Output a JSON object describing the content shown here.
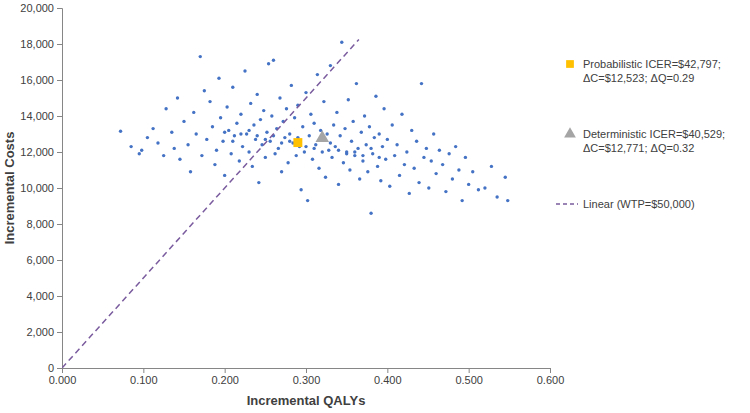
{
  "chart_data": {
    "type": "scatter",
    "x_label": "Incremental QALYs",
    "y_label": "Incremental Costs",
    "xlim": [
      0,
      0.6
    ],
    "ylim": [
      0,
      20000
    ],
    "xticks": [
      {
        "value": 0,
        "label": "0.000"
      },
      {
        "value": 0.1,
        "label": "0.100"
      },
      {
        "value": 0.2,
        "label": "0.200"
      },
      {
        "value": 0.3,
        "label": "0.300"
      },
      {
        "value": 0.4,
        "label": "0.400"
      },
      {
        "value": 0.5,
        "label": "0.500"
      },
      {
        "value": 0.6,
        "label": "0.600"
      }
    ],
    "yticks": [
      0,
      {
        "value": 2000,
        "label": "2,000"
      },
      {
        "value": 4000,
        "label": "4,000"
      },
      {
        "value": 6000,
        "label": "6,000"
      },
      {
        "value": 8000,
        "label": "8,000"
      },
      {
        "value": 10000,
        "label": "10,000"
      },
      {
        "value": 12000,
        "label": "12,000"
      },
      {
        "value": 14000,
        "label": "14,000"
      },
      {
        "value": 16000,
        "label": "16,000"
      },
      {
        "value": 18000,
        "label": "18,000"
      },
      {
        "value": 20000,
        "label": "20,000"
      }
    ],
    "grid": false,
    "legend": "right",
    "series": [
      {
        "color": "#4472c4",
        "marker": "circle",
        "x": [
          0.072,
          0.085,
          0.095,
          0.098,
          0.105,
          0.112,
          0.118,
          0.125,
          0.128,
          0.135,
          0.138,
          0.142,
          0.145,
          0.15,
          0.155,
          0.158,
          0.162,
          0.165,
          0.17,
          0.172,
          0.175,
          0.178,
          0.182,
          0.185,
          0.188,
          0.19,
          0.193,
          0.195,
          0.198,
          0.2,
          0.203,
          0.205,
          0.208,
          0.21,
          0.212,
          0.215,
          0.218,
          0.22,
          0.222,
          0.225,
          0.227,
          0.23,
          0.232,
          0.234,
          0.236,
          0.238,
          0.24,
          0.242,
          0.244,
          0.246,
          0.248,
          0.25,
          0.252,
          0.254,
          0.256,
          0.258,
          0.26,
          0.262,
          0.264,
          0.266,
          0.268,
          0.27,
          0.272,
          0.274,
          0.276,
          0.278,
          0.28,
          0.282,
          0.284,
          0.286,
          0.288,
          0.29,
          0.292,
          0.294,
          0.296,
          0.298,
          0.3,
          0.302,
          0.304,
          0.306,
          0.308,
          0.31,
          0.312,
          0.314,
          0.316,
          0.318,
          0.32,
          0.322,
          0.324,
          0.326,
          0.328,
          0.33,
          0.332,
          0.334,
          0.336,
          0.338,
          0.34,
          0.342,
          0.344,
          0.346,
          0.348,
          0.35,
          0.352,
          0.354,
          0.356,
          0.358,
          0.36,
          0.362,
          0.364,
          0.366,
          0.368,
          0.37,
          0.372,
          0.374,
          0.376,
          0.378,
          0.38,
          0.382,
          0.384,
          0.386,
          0.388,
          0.39,
          0.392,
          0.394,
          0.396,
          0.398,
          0.4,
          0.403,
          0.406,
          0.409,
          0.412,
          0.415,
          0.418,
          0.421,
          0.424,
          0.427,
          0.43,
          0.433,
          0.436,
          0.439,
          0.442,
          0.445,
          0.448,
          0.451,
          0.454,
          0.457,
          0.46,
          0.464,
          0.468,
          0.472,
          0.476,
          0.48,
          0.484,
          0.488,
          0.492,
          0.496,
          0.5,
          0.505,
          0.512,
          0.52,
          0.528,
          0.535,
          0.545,
          0.548,
          0.27,
          0.28,
          0.29,
          0.3,
          0.31,
          0.32,
          0.26,
          0.25,
          0.33,
          0.34,
          0.24,
          0.35,
          0.23,
          0.36,
          0.22,
          0.37,
          0.21,
          0.38,
          0.2,
          0.39
        ],
        "values": [
          13150,
          12300,
          11900,
          12100,
          12800,
          13300,
          12500,
          11800,
          14400,
          13100,
          12200,
          15000,
          11600,
          13700,
          12400,
          10900,
          14200,
          13000,
          17300,
          11800,
          15400,
          12700,
          14800,
          13400,
          11300,
          12100,
          16100,
          13900,
          12600,
          10700,
          14500,
          13200,
          11900,
          15600,
          12900,
          13600,
          11500,
          14100,
          12300,
          16500,
          13000,
          12000,
          14700,
          11200,
          13500,
          12700,
          15200,
          10300,
          13800,
          12400,
          14300,
          11700,
          13100,
          16900,
          12600,
          14000,
          17100,
          11900,
          13300,
          12200,
          15000,
          10900,
          13700,
          12800,
          14400,
          11400,
          13000,
          15700,
          12500,
          13900,
          11800,
          14600,
          12300,
          9900,
          13400,
          12000,
          15300,
          9300,
          12900,
          14100,
          11600,
          13600,
          12400,
          16300,
          11100,
          13200,
          12700,
          14800,
          10600,
          13000,
          12100,
          16800,
          11700,
          13500,
          12300,
          14200,
          10200,
          12900,
          18100,
          11400,
          13300,
          12000,
          14900,
          11000,
          12600,
          13700,
          11800,
          15800,
          12200,
          10500,
          13100,
          11500,
          14000,
          12400,
          10900,
          13400,
          8600,
          11900,
          12800,
          15100,
          11200,
          13000,
          10400,
          12300,
          14400,
          11600,
          12700,
          10100,
          13500,
          11800,
          12400,
          10700,
          14100,
          11300,
          12000,
          9700,
          13200,
          11100,
          12600,
          10300,
          15800,
          11700,
          12200,
          10000,
          11500,
          13000,
          10800,
          12100,
          11300,
          9800,
          11900,
          10500,
          12300,
          11000,
          9300,
          11700,
          10200,
          10900,
          9900,
          10000,
          11200,
          9500,
          10600,
          9300,
          12500,
          12600,
          12800,
          12300,
          12200,
          12000,
          12900,
          12700,
          12500,
          12100,
          12900,
          11900,
          13200,
          12000,
          13000,
          11800,
          12600,
          12200,
          13100,
          11700
        ]
      },
      {
        "name": "Probabilistic ICER=$42,797; ΔC=$12,523; ΔQ=0.29",
        "color": "#ffc000",
        "marker": "square",
        "x": [
          0.29
        ],
        "values": [
          12523
        ]
      },
      {
        "name": "Deterministic ICER=$40,529; ΔC=$12,771; ΔQ=0.32",
        "color": "#a5a5a5",
        "marker": "triangle",
        "x": [
          0.32
        ],
        "values": [
          12771
        ]
      },
      {
        "name": "Linear (WTP=$50,000)",
        "type": "line",
        "line_style": "dashed",
        "color": "#7a5c9e",
        "x": [
          0,
          0.365
        ],
        "values": [
          0,
          18250
        ]
      }
    ]
  }
}
